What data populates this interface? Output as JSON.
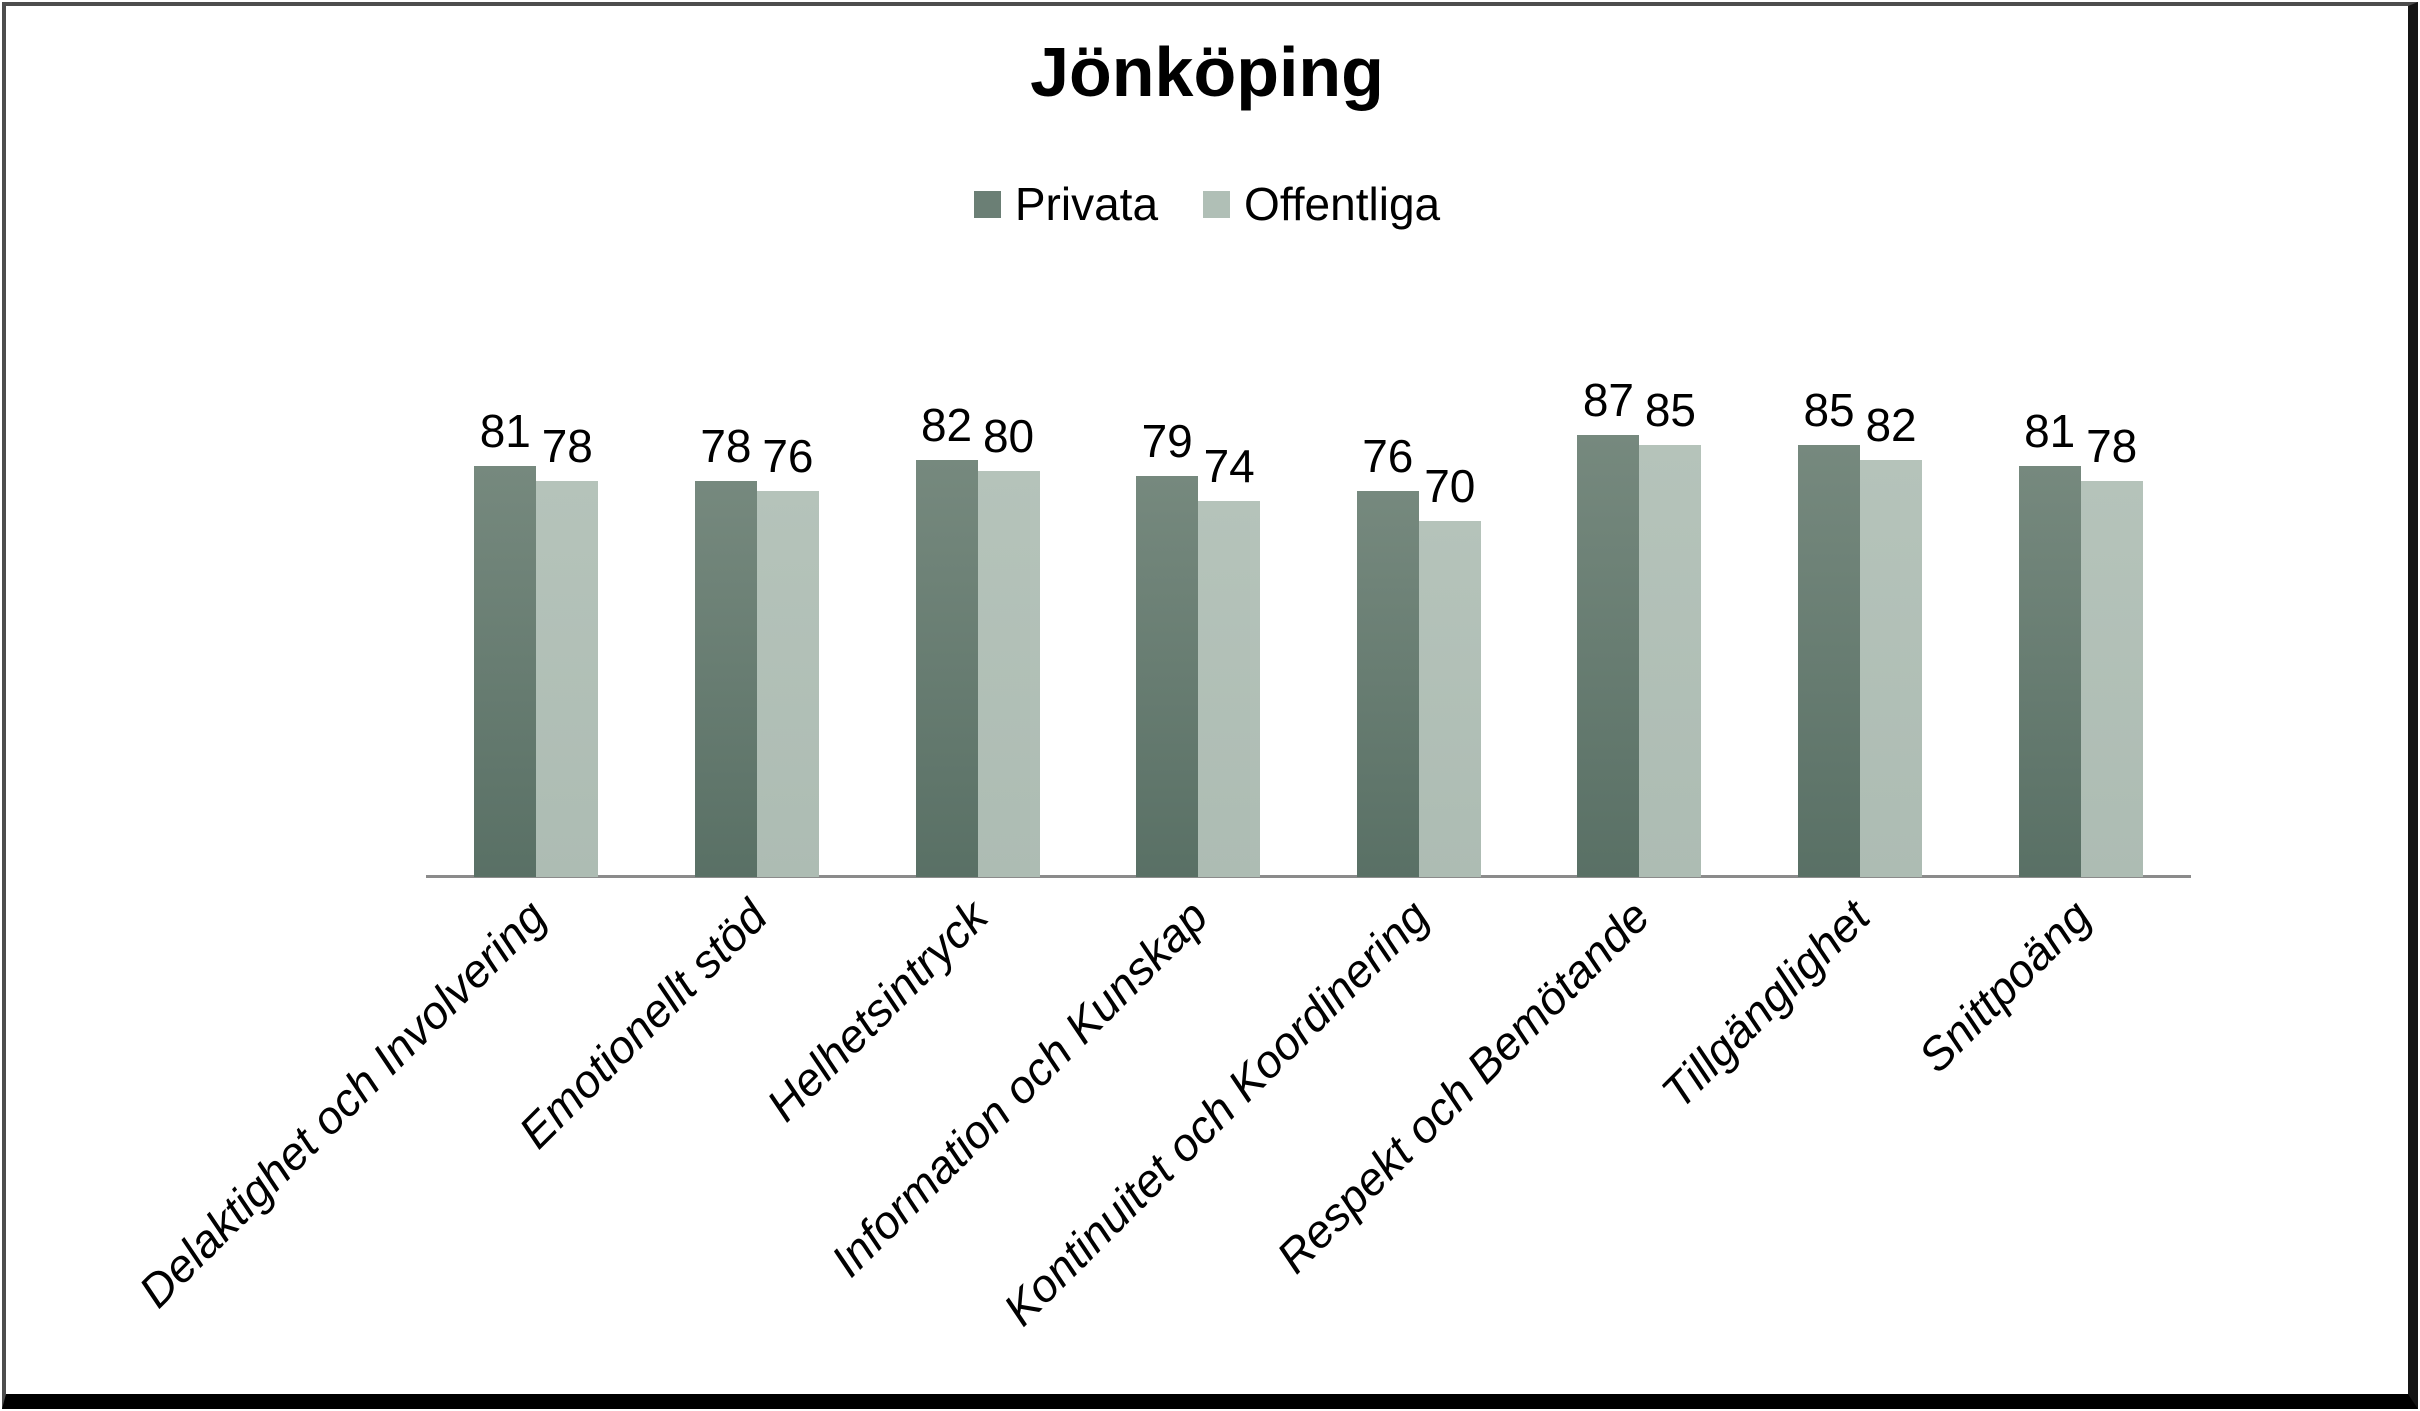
{
  "title": "Jönköping",
  "legend": {
    "items": [
      {
        "label": "Privata",
        "color": "#6b7f75"
      },
      {
        "label": "Offentliga",
        "color": "#b0bfb6"
      }
    ]
  },
  "chart_data": {
    "type": "bar",
    "title": "Jönköping",
    "categories": [
      "Delaktighet och Involvering",
      "Emotionellt stöd",
      "Helhetsintryck",
      "Information och Kunskap",
      "Kontinuitet och Koordinering",
      "Respekt och Bemötande",
      "Tillgänglighet",
      "Snittpoäng"
    ],
    "series": [
      {
        "name": "Privata",
        "values": [
          81,
          78,
          82,
          79,
          76,
          87,
          85,
          81
        ],
        "color_top": "#76897e",
        "color_bottom": "#597065",
        "legend_color": "#6b7f75"
      },
      {
        "name": "Offentliga",
        "values": [
          78,
          76,
          80,
          74,
          70,
          85,
          82,
          78
        ],
        "color_top": "#b5c3ba",
        "color_bottom": "#adbcb3",
        "legend_color": "#b0bfb6"
      }
    ],
    "ylim": [
      0,
      100
    ],
    "grid": false,
    "y_axis_visible": false,
    "value_labels": true,
    "legend_position": "top",
    "x_label_style": "italic, rotated 45deg",
    "axis_line_color": "#8b8b8b",
    "background": "#ffffff"
  }
}
